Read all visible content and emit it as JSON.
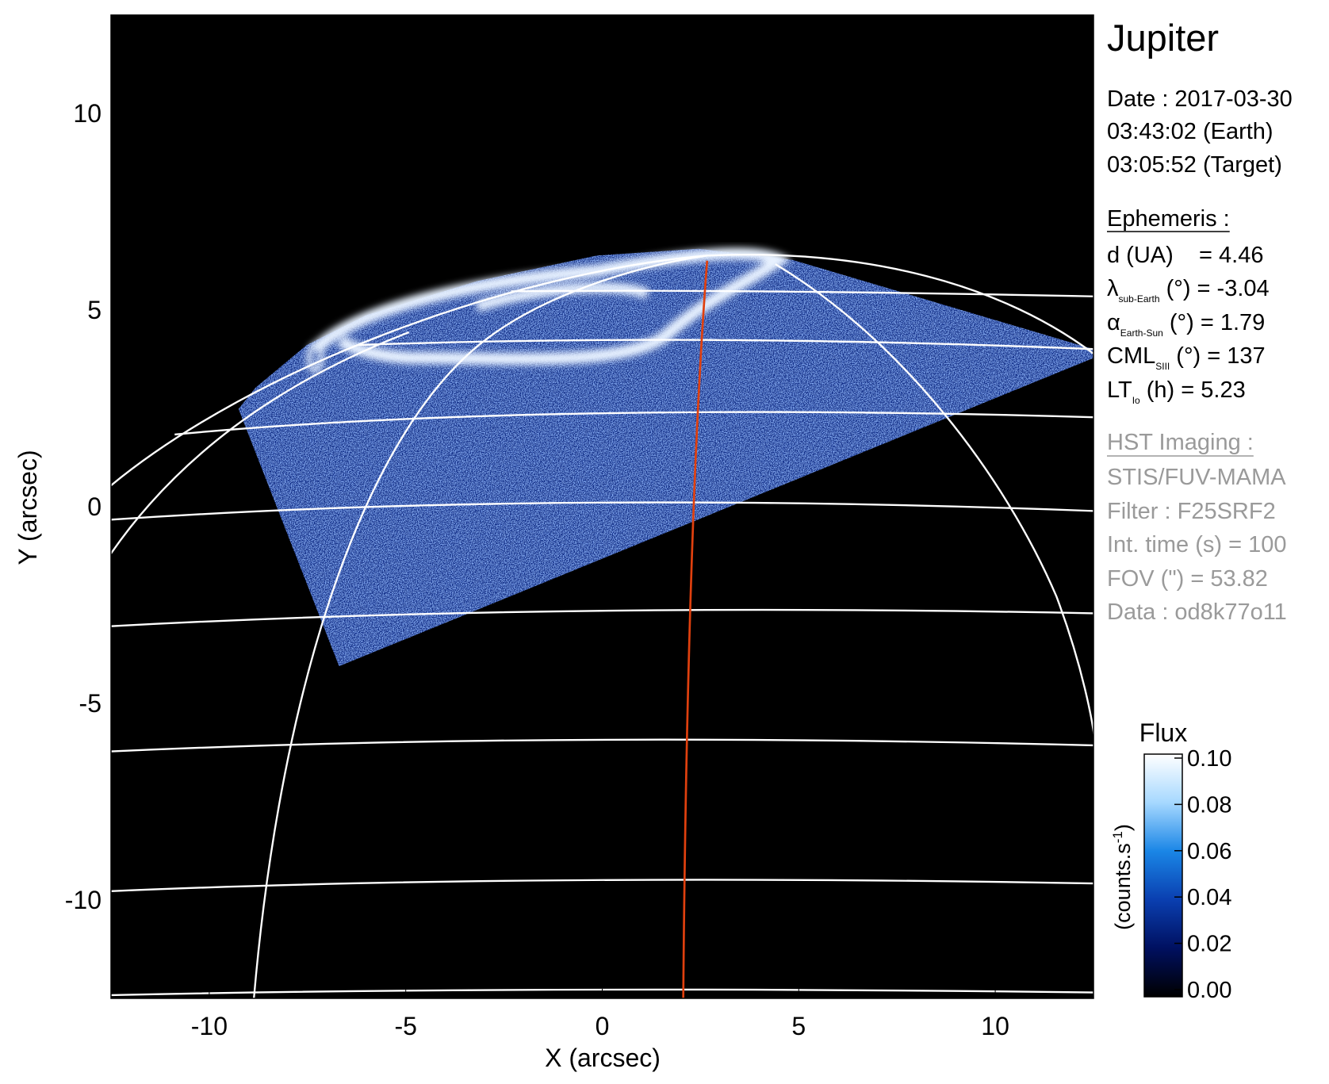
{
  "chart_data": {
    "type": "image",
    "title": "Jupiter",
    "xlabel": "X (arcsec)",
    "ylabel": "Y (arcsec)",
    "xlim": [
      -12.5,
      12.5
    ],
    "ylim": [
      -12.5,
      12.5
    ],
    "xticks": [
      -10,
      -5,
      0,
      5,
      10
    ],
    "yticks": [
      -10,
      -5,
      0,
      5,
      10
    ],
    "colorbar": {
      "label": "Flux",
      "units": {
        "base": "(counts.s",
        "sup": "-1",
        "close": ")"
      },
      "clim": [
        0,
        0.1
      ],
      "ticks": [
        {
          "value": 0,
          "label": "0.00"
        },
        {
          "value": 0.02,
          "label": "0.02"
        },
        {
          "value": 0.04,
          "label": "0.04"
        },
        {
          "value": 0.06,
          "label": "0.06"
        },
        {
          "value": 0.08,
          "label": "0.08"
        },
        {
          "value": 0.1,
          "label": "0.10"
        }
      ],
      "colors": [
        "#000000",
        "#001060",
        "#0a3fb0",
        "#1a86e6",
        "#a6d8ff",
        "#ffffff"
      ]
    },
    "info": {
      "date": [
        "Date : 2017-03-30",
        "03:43:02 (Earth)",
        "03:05:52 (Target)"
      ],
      "ephemeris_title": "Ephemeris :",
      "ephemeris": [
        {
          "text": "d (UA)    = 4.46"
        },
        {
          "symbol": "λ",
          "sub": "sub-Earth",
          "text": " (°) = -3.04"
        },
        {
          "symbol": "α",
          "sub": "Earth-Sun",
          "text": " (°) = 1.79"
        },
        {
          "symbol": "CML",
          "sub": "SIII",
          "text": " (°) = 137"
        },
        {
          "symbol": "LT",
          "sub": "Io",
          "text": " (h) = 5.23"
        }
      ],
      "imaging_title": "HST Imaging :",
      "imaging": [
        "STIS/FUV-MAMA",
        "Filter : F25SRF2",
        "Int. time (s) = 100",
        "FOV (\") = 53.82",
        "Data : od8k77o11"
      ]
    }
  }
}
